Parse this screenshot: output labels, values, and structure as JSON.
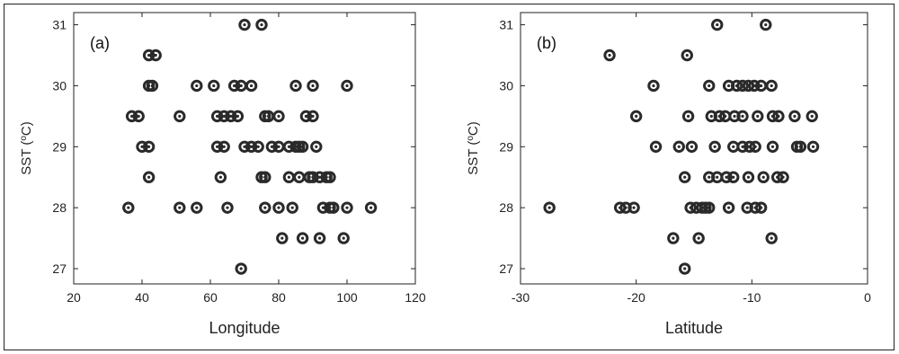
{
  "chart_data": [
    {
      "type": "scatter",
      "panel_label": "(a)",
      "xlabel": "Longitude",
      "ylabel_main": "SST (",
      "ylabel_sup": "o",
      "ylabel_end": "C)",
      "xlim": [
        20,
        120
      ],
      "ylim": [
        26.75,
        31.2
      ],
      "xticks": [
        20,
        40,
        60,
        80,
        100,
        120
      ],
      "yticks": [
        27,
        28,
        29,
        30,
        31
      ],
      "x": [
        70,
        75,
        42,
        44,
        42,
        43,
        56,
        61,
        67,
        69,
        72,
        85,
        90,
        100,
        37,
        39,
        51,
        62,
        64,
        66,
        68,
        76,
        77,
        80,
        88,
        90,
        40,
        42,
        62,
        64,
        70,
        72,
        74,
        78,
        80,
        83,
        85,
        86,
        87,
        91,
        42,
        63,
        75,
        76,
        83,
        86,
        89,
        90,
        92,
        94,
        95,
        36,
        51,
        56,
        65,
        76,
        80,
        84,
        93,
        95,
        96,
        100,
        107,
        81,
        87,
        92,
        99,
        69
      ],
      "y": [
        31,
        31,
        30.5,
        30.5,
        30,
        30,
        30,
        30,
        30,
        30,
        30,
        30,
        30,
        30,
        29.5,
        29.5,
        29.5,
        29.5,
        29.5,
        29.5,
        29.5,
        29.5,
        29.5,
        29.5,
        29.5,
        29.5,
        29,
        29,
        29,
        29,
        29,
        29,
        29,
        29,
        29,
        29,
        29,
        29,
        29,
        29,
        28.5,
        28.5,
        28.5,
        28.5,
        28.5,
        28.5,
        28.5,
        28.5,
        28.5,
        28.5,
        28.5,
        28,
        28,
        28,
        28,
        28,
        28,
        28,
        28,
        28,
        28,
        28,
        28,
        27.5,
        27.5,
        27.5,
        27.5,
        27
      ]
    },
    {
      "type": "scatter",
      "panel_label": "(b)",
      "xlabel": "Latitude",
      "ylabel_main": "SST (",
      "ylabel_sup": "o",
      "ylabel_end": "C)",
      "xlim": [
        -30,
        0
      ],
      "ylim": [
        26.75,
        31.2
      ],
      "xticks": [
        -30,
        -20,
        -10,
        0
      ],
      "yticks": [
        27,
        28,
        29,
        30,
        31
      ],
      "x": [
        -13,
        -8.8,
        -22.3,
        -15.6,
        -18.5,
        -13.7,
        -12,
        -11.3,
        -10.8,
        -10.3,
        -9.8,
        -9.2,
        -8.3,
        -20,
        -15.5,
        -13.5,
        -12.8,
        -12.3,
        -11.5,
        -10.8,
        -9.5,
        -8.2,
        -7.7,
        -6.3,
        -4.8,
        -18.3,
        -16.3,
        -15.2,
        -13.2,
        -11.6,
        -10.8,
        -10.2,
        -9.7,
        -8.2,
        -6.1,
        -5.8,
        -4.7,
        -15.8,
        -13.7,
        -13.0,
        -12.2,
        -11.6,
        -10.3,
        -9.0,
        -7.8,
        -7.3,
        -27.5,
        -21.4,
        -20.9,
        -20.2,
        -15.3,
        -14.8,
        -14.3,
        -14.0,
        -13.7,
        -12.0,
        -10.4,
        -9.7,
        -9.2,
        -16.8,
        -14.6,
        -8.3,
        -15.8
      ],
      "y": [
        31,
        31,
        30.5,
        30.5,
        30,
        30,
        30,
        30,
        30,
        30,
        30,
        30,
        30,
        29.5,
        29.5,
        29.5,
        29.5,
        29.5,
        29.5,
        29.5,
        29.5,
        29.5,
        29.5,
        29.5,
        29.5,
        29,
        29,
        29,
        29,
        29,
        29,
        29,
        29,
        29,
        29,
        29,
        29,
        28.5,
        28.5,
        28.5,
        28.5,
        28.5,
        28.5,
        28.5,
        28.5,
        28.5,
        28,
        28,
        28,
        28,
        28,
        28,
        28,
        28,
        28,
        28,
        28,
        28,
        28,
        27.5,
        27.5,
        27.5,
        27
      ]
    }
  ]
}
